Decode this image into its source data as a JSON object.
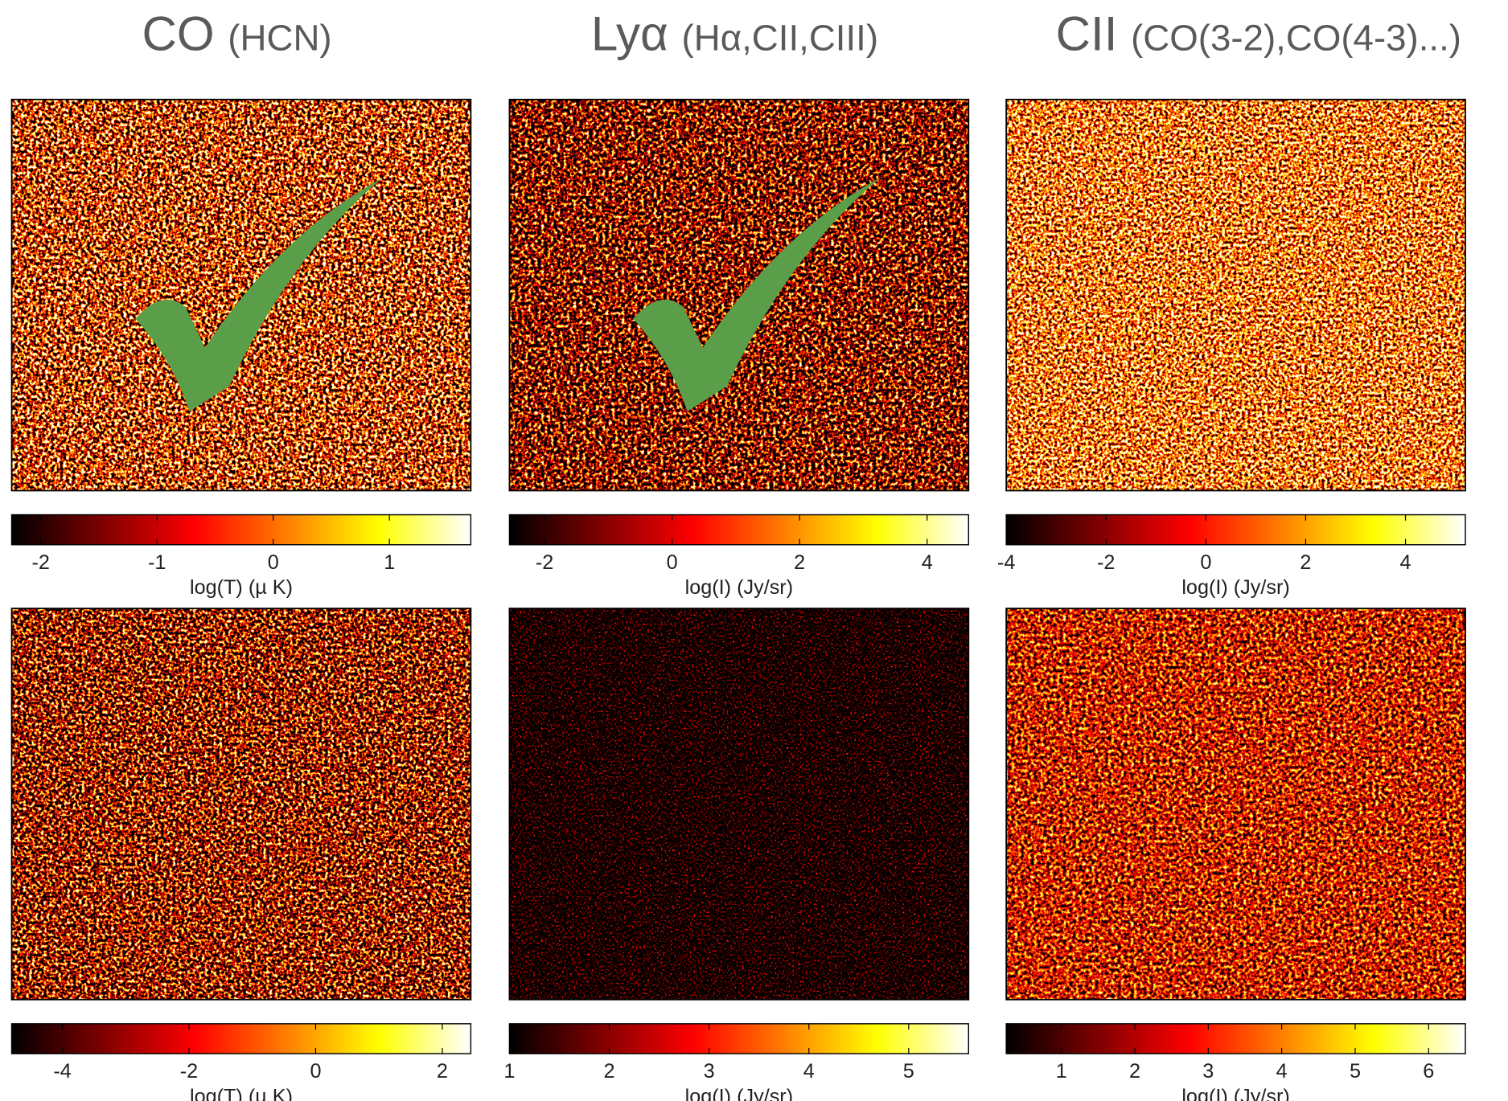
{
  "columns": [
    {
      "title": "CO",
      "subtitle": "(HCN)"
    },
    {
      "title": "Lyα",
      "subtitle": "(Hα,CII,CIII)"
    },
    {
      "title": "CII",
      "subtitle": "(CO(3-2),CO(4-3)...)"
    }
  ],
  "chart_data": [
    {
      "type": "heatmap",
      "colorbar_label": "log(T) (µ K)",
      "clim": [
        -2.25,
        1.7
      ],
      "cticks": [
        -2,
        -1,
        0,
        1
      ]
    },
    {
      "type": "heatmap",
      "colorbar_label": "log(I) (Jy/sr)",
      "clim": [
        -2.55,
        4.65
      ],
      "cticks": [
        -2,
        0,
        2,
        4
      ]
    },
    {
      "type": "heatmap",
      "colorbar_label": "log(I) (Jy/sr)",
      "clim": [
        -4,
        5.2
      ],
      "cticks": [
        -4,
        -2,
        0,
        2,
        4
      ]
    },
    {
      "type": "heatmap",
      "colorbar_label": "log(T) (µ K)",
      "clim": [
        -4.8,
        2.45
      ],
      "cticks": [
        -4,
        -2,
        0,
        2
      ]
    },
    {
      "type": "heatmap",
      "colorbar_label": "log(I) (Jy/sr)",
      "clim": [
        1,
        5.6
      ],
      "cticks": [
        1,
        2,
        3,
        4,
        5
      ]
    },
    {
      "type": "heatmap",
      "colorbar_label": "log(I) (Jy/sr)",
      "clim": [
        0.25,
        6.5
      ],
      "cticks": [
        1,
        2,
        3,
        4,
        5,
        6
      ]
    }
  ]
}
